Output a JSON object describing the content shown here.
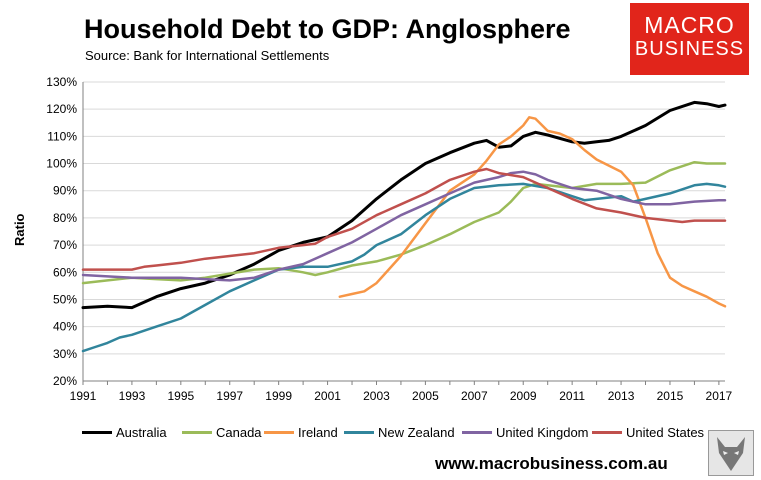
{
  "header": {
    "title": "Household Debt to GDP: Anglosphere",
    "subtitle": "Source: Bank for International Settlements"
  },
  "logo": {
    "line1": "MACRO",
    "line2": "BUSINESS"
  },
  "footer": {
    "url": "www.macrobusiness.com.au"
  },
  "colors": {
    "Australia": "#000000",
    "Canada": "#9bbb59",
    "Ireland": "#f79646",
    "New Zealand": "#31859c",
    "United Kingdom": "#8064a2",
    "United States": "#c0504d",
    "grid": "#d9d9d9",
    "logo": "#e1251b"
  },
  "chart_data": {
    "type": "line",
    "title": "Household Debt to GDP: Anglosphere",
    "xlabel": "",
    "ylabel": "Ratio",
    "xlim": [
      1991,
      2017.25
    ],
    "ylim": [
      20,
      130
    ],
    "y_ticks": [
      "20%",
      "30%",
      "40%",
      "50%",
      "60%",
      "70%",
      "80%",
      "90%",
      "100%",
      "110%",
      "120%",
      "130%"
    ],
    "x_ticks": [
      "1991",
      "1993",
      "1995",
      "1997",
      "1999",
      "2001",
      "2003",
      "2005",
      "2007",
      "2009",
      "2011",
      "2013",
      "2015",
      "2017"
    ],
    "grid": "horizontal",
    "legend_position": "bottom",
    "series": [
      {
        "name": "Australia",
        "points": [
          [
            1991,
            47
          ],
          [
            1992,
            47.5
          ],
          [
            1993,
            47
          ],
          [
            1994,
            51
          ],
          [
            1995,
            54
          ],
          [
            1996,
            56
          ],
          [
            1997,
            59
          ],
          [
            1998,
            63
          ],
          [
            1999,
            68
          ],
          [
            2000,
            71
          ],
          [
            2001,
            73
          ],
          [
            2002,
            79
          ],
          [
            2003,
            87
          ],
          [
            2004,
            94
          ],
          [
            2005,
            100
          ],
          [
            2006,
            104
          ],
          [
            2007,
            107.5
          ],
          [
            2007.5,
            108.5
          ],
          [
            2008,
            106
          ],
          [
            2008.5,
            106.5
          ],
          [
            2009,
            110
          ],
          [
            2009.5,
            111.5
          ],
          [
            2010,
            110.5
          ],
          [
            2011,
            108
          ],
          [
            2011.5,
            107.5
          ],
          [
            2012,
            108
          ],
          [
            2012.5,
            108.5
          ],
          [
            2013,
            110
          ],
          [
            2014,
            114
          ],
          [
            2015,
            119.5
          ],
          [
            2016,
            122.5
          ],
          [
            2016.5,
            122
          ],
          [
            2017,
            121
          ],
          [
            2017.25,
            121.5
          ]
        ]
      },
      {
        "name": "Canada",
        "points": [
          [
            1991,
            56
          ],
          [
            1992,
            57
          ],
          [
            1993,
            58
          ],
          [
            1994,
            57.5
          ],
          [
            1995,
            57
          ],
          [
            1996,
            58
          ],
          [
            1997,
            59.5
          ],
          [
            1998,
            61
          ],
          [
            1999,
            61.5
          ],
          [
            2000,
            60
          ],
          [
            2000.5,
            59
          ],
          [
            2001,
            60
          ],
          [
            2002,
            62.5
          ],
          [
            2003,
            64
          ],
          [
            2004,
            66.5
          ],
          [
            2005,
            70
          ],
          [
            2006,
            74
          ],
          [
            2007,
            78.5
          ],
          [
            2008,
            82
          ],
          [
            2008.5,
            86
          ],
          [
            2009,
            91
          ],
          [
            2009.5,
            92.5
          ],
          [
            2010,
            92
          ],
          [
            2011,
            91
          ],
          [
            2012,
            92.5
          ],
          [
            2013,
            92.5
          ],
          [
            2014,
            93
          ],
          [
            2015,
            97.5
          ],
          [
            2016,
            100.5
          ],
          [
            2016.5,
            100
          ],
          [
            2017,
            100
          ],
          [
            2017.25,
            100
          ]
        ]
      },
      {
        "name": "Ireland",
        "points": [
          [
            2001.5,
            51
          ],
          [
            2002,
            52
          ],
          [
            2002.5,
            53
          ],
          [
            2003,
            56
          ],
          [
            2004,
            66
          ],
          [
            2005,
            78
          ],
          [
            2006,
            90
          ],
          [
            2007,
            96
          ],
          [
            2007.5,
            101
          ],
          [
            2008,
            107
          ],
          [
            2008.5,
            110
          ],
          [
            2009,
            114
          ],
          [
            2009.25,
            117
          ],
          [
            2009.5,
            116.5
          ],
          [
            2010,
            112
          ],
          [
            2010.5,
            111
          ],
          [
            2011,
            109
          ],
          [
            2011.5,
            105
          ],
          [
            2012,
            101.5
          ],
          [
            2013,
            97
          ],
          [
            2013.5,
            92
          ],
          [
            2014,
            80
          ],
          [
            2014.5,
            67
          ],
          [
            2015,
            58
          ],
          [
            2015.5,
            55
          ],
          [
            2016,
            53
          ],
          [
            2016.5,
            51
          ],
          [
            2017,
            48.5
          ],
          [
            2017.25,
            47.5
          ]
        ]
      },
      {
        "name": "New Zealand",
        "points": [
          [
            1991,
            31
          ],
          [
            1991.5,
            32.5
          ],
          [
            1992,
            34
          ],
          [
            1992.5,
            36
          ],
          [
            1993,
            37
          ],
          [
            1994,
            40
          ],
          [
            1995,
            43
          ],
          [
            1996,
            48
          ],
          [
            1997,
            53
          ],
          [
            1998,
            57
          ],
          [
            1999,
            61
          ],
          [
            2000,
            62
          ],
          [
            2001,
            62
          ],
          [
            2002,
            64
          ],
          [
            2002.5,
            66.5
          ],
          [
            2003,
            70
          ],
          [
            2004,
            74
          ],
          [
            2005,
            81
          ],
          [
            2006,
            87
          ],
          [
            2007,
            91
          ],
          [
            2008,
            92
          ],
          [
            2009,
            92.5
          ],
          [
            2010,
            91
          ],
          [
            2011,
            88
          ],
          [
            2011.5,
            86.5
          ],
          [
            2012,
            87
          ],
          [
            2013,
            88
          ],
          [
            2013.5,
            86
          ],
          [
            2014,
            87
          ],
          [
            2015,
            89
          ],
          [
            2016,
            92
          ],
          [
            2016.5,
            92.5
          ],
          [
            2017,
            92
          ],
          [
            2017.25,
            91.5
          ]
        ]
      },
      {
        "name": "United Kingdom",
        "points": [
          [
            1991,
            59
          ],
          [
            1992,
            58.5
          ],
          [
            1993,
            58
          ],
          [
            1994,
            58
          ],
          [
            1995,
            58
          ],
          [
            1996,
            57.5
          ],
          [
            1997,
            57
          ],
          [
            1998,
            58
          ],
          [
            1999,
            61
          ],
          [
            2000,
            63
          ],
          [
            2001,
            67
          ],
          [
            2002,
            71
          ],
          [
            2003,
            76
          ],
          [
            2004,
            81
          ],
          [
            2005,
            85
          ],
          [
            2006,
            89
          ],
          [
            2007,
            93
          ],
          [
            2008,
            95
          ],
          [
            2008.5,
            96.5
          ],
          [
            2009,
            97
          ],
          [
            2009.5,
            96
          ],
          [
            2010,
            94
          ],
          [
            2011,
            91
          ],
          [
            2012,
            90
          ],
          [
            2013,
            87
          ],
          [
            2014,
            85
          ],
          [
            2015,
            85
          ],
          [
            2016,
            86
          ],
          [
            2017,
            86.5
          ],
          [
            2017.25,
            86.5
          ]
        ]
      },
      {
        "name": "United States",
        "points": [
          [
            1991,
            61
          ],
          [
            1992,
            61
          ],
          [
            1993,
            61
          ],
          [
            1993.5,
            62
          ],
          [
            1994,
            62.5
          ],
          [
            1995,
            63.5
          ],
          [
            1996,
            65
          ],
          [
            1997,
            66
          ],
          [
            1998,
            67
          ],
          [
            1999,
            69
          ],
          [
            2000,
            70
          ],
          [
            2000.5,
            70.5
          ],
          [
            2001,
            73
          ],
          [
            2002,
            76
          ],
          [
            2003,
            81
          ],
          [
            2004,
            85
          ],
          [
            2005,
            89
          ],
          [
            2006,
            94
          ],
          [
            2007,
            97
          ],
          [
            2007.5,
            98
          ],
          [
            2008,
            96.5
          ],
          [
            2009,
            95
          ],
          [
            2010,
            91
          ],
          [
            2011,
            87
          ],
          [
            2012,
            83.5
          ],
          [
            2013,
            82
          ],
          [
            2014,
            80
          ],
          [
            2015,
            79
          ],
          [
            2015.5,
            78.5
          ],
          [
            2016,
            79
          ],
          [
            2017,
            79
          ],
          [
            2017.25,
            79
          ]
        ]
      }
    ]
  }
}
